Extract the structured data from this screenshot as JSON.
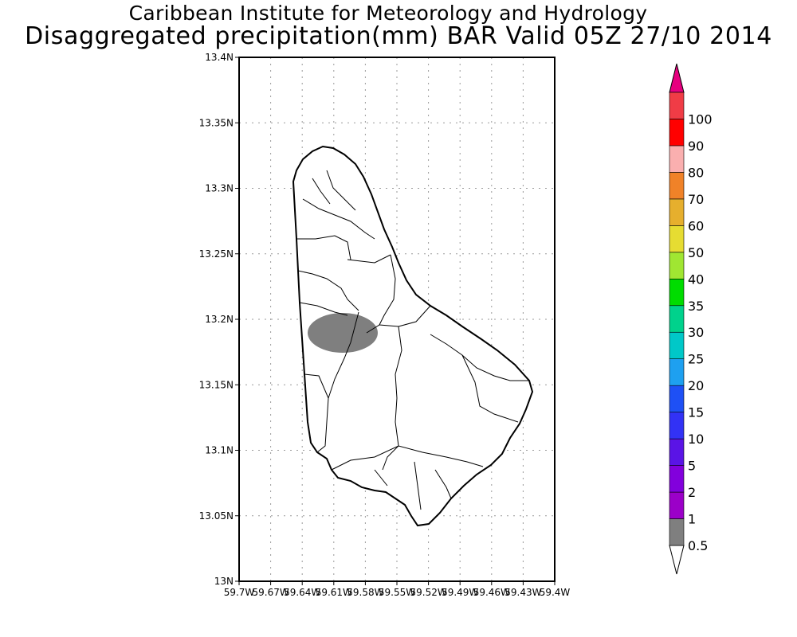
{
  "header": {
    "title_line1": "Caribbean Institute for Meteorology and Hydrology",
    "title_line2": "Disaggregated precipitation(mm) BAR Valid 05Z 27/10 2014"
  },
  "map": {
    "region": "Barbados",
    "lat_range": [
      13.0,
      13.4
    ],
    "lon_range": [
      -59.7,
      -59.4
    ],
    "lat_ticks": [
      "13N",
      "13.05N",
      "13.1N",
      "13.15N",
      "13.2N",
      "13.25N",
      "13.3N",
      "13.35N",
      "13.4N"
    ],
    "lon_ticks": [
      "59.7W",
      "59.67W",
      "59.64W",
      "59.61W",
      "59.58W",
      "59.55W",
      "59.52W",
      "59.49W",
      "59.46W",
      "59.43W",
      "59.4W"
    ],
    "grid": true,
    "land_fill": "#ffffff",
    "coast_color": "#000000",
    "precip_area": {
      "center_lon": -59.594,
      "center_lat": 13.193,
      "bin": "0.5-1 mm",
      "color": "#7f7f7f"
    }
  },
  "colorbar": {
    "labels": [
      "0.5",
      "1",
      "2",
      "5",
      "10",
      "15",
      "20",
      "25",
      "30",
      "35",
      "40",
      "50",
      "60",
      "70",
      "80",
      "90",
      "100"
    ],
    "colors": [
      "#7f7f7f",
      "#9b00c8",
      "#8200dc",
      "#5a14e6",
      "#3232f5",
      "#1e50f5",
      "#1ea0f0",
      "#00c8c8",
      "#00d28c",
      "#00dc00",
      "#a0e632",
      "#e6dc32",
      "#e6af2d",
      "#f08228",
      "#faafaf",
      "#ff0000",
      "#f03c46"
    ],
    "lower_arrow_color": "#ffffff",
    "upper_arrow_color": "#e6007f"
  }
}
